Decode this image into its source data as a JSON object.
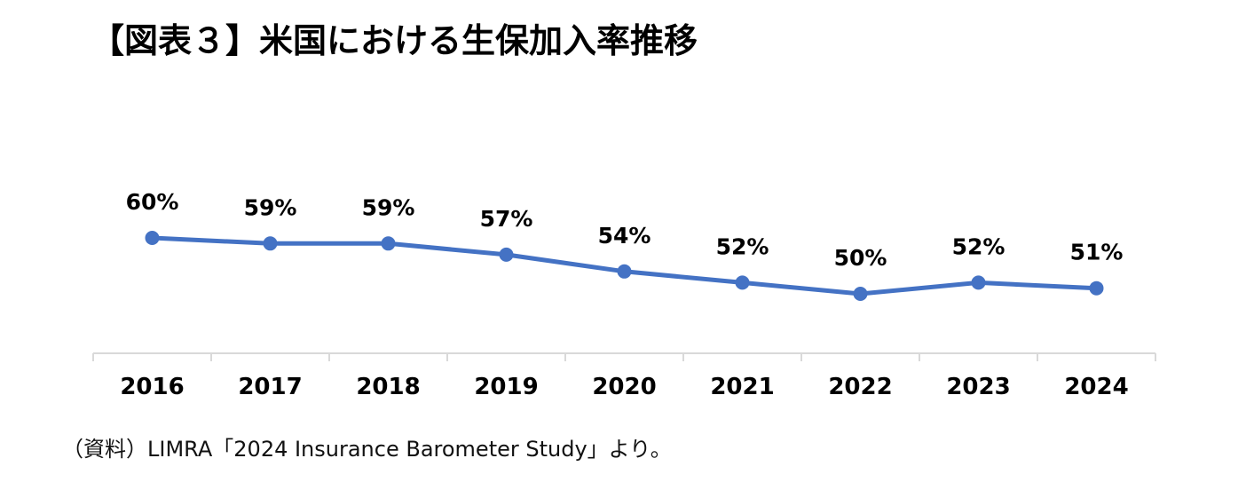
{
  "chart_data": {
    "type": "line",
    "title": "【図表３】米国における生保加入率推移",
    "categories": [
      "2016",
      "2017",
      "2018",
      "2019",
      "2020",
      "2021",
      "2022",
      "2023",
      "2024"
    ],
    "series": [
      {
        "values": [
          60,
          59,
          59,
          57,
          54,
          52,
          50,
          52,
          51
        ],
        "labels": [
          "60%",
          "59%",
          "59%",
          "57%",
          "54%",
          "52%",
          "50%",
          "52%",
          "51%"
        ],
        "color": "#4472C4"
      }
    ],
    "y_unit": "%",
    "xlabel": "",
    "ylabel": "",
    "grid": false,
    "legend": false
  },
  "source": "（資料）LIMRA「2024 Insurance Barometer Study」より。",
  "colors": {
    "line": "#4472C4",
    "axis": "#D9D9D9",
    "text": "#000000"
  }
}
